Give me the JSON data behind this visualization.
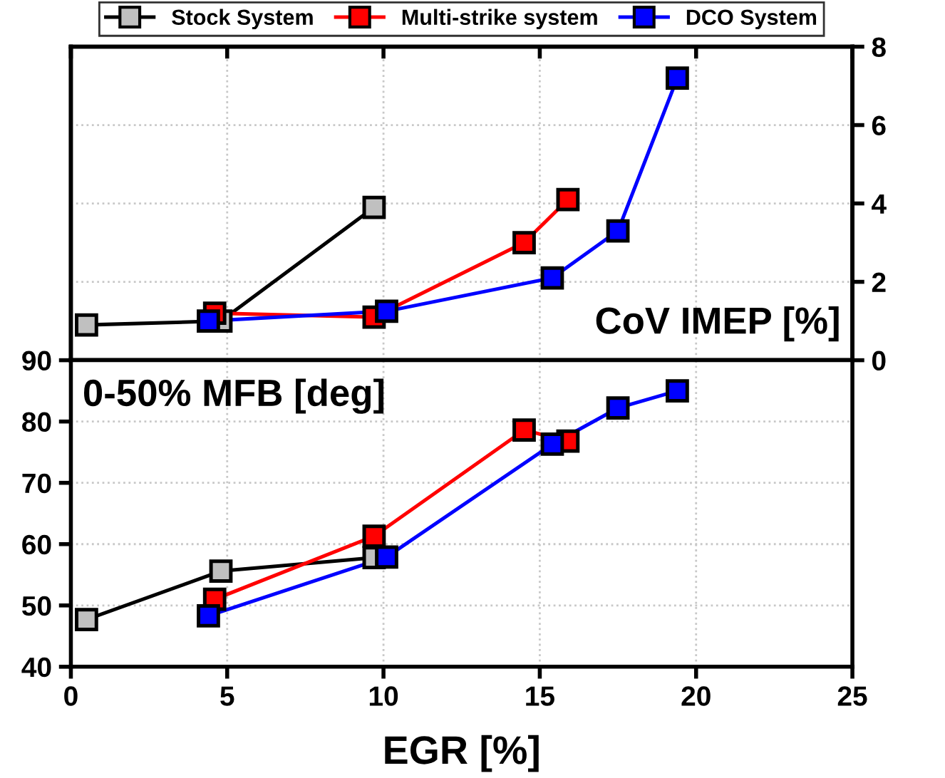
{
  "chart_data": [
    {
      "type": "line",
      "xlim": [
        0,
        25
      ],
      "xticks": [
        0,
        5,
        10,
        15,
        20,
        25
      ],
      "y2lim": [
        0,
        8
      ],
      "y2ticks": [
        0,
        2,
        4,
        6,
        8
      ],
      "tick_labels": "y",
      "grid": true,
      "marker": "square",
      "legend": "top",
      "annotations": [
        "CoV IMEP [%]"
      ],
      "series": [
        {
          "name": "Stock System",
          "color": "#c0c0c0",
          "axis": "y2",
          "x": [
            0.5,
            4.8,
            9.7
          ],
          "values": [
            0.9,
            1.0,
            3.9
          ]
        },
        {
          "name": "Multi-strike system",
          "color": "#ff0000",
          "axis": "y2",
          "x": [
            4.6,
            9.7,
            14.5,
            15.9
          ],
          "values": [
            1.2,
            1.1,
            3.0,
            4.1
          ]
        },
        {
          "name": "DCO System",
          "color": "#0000ff",
          "axis": "y2",
          "x": [
            4.4,
            10.1,
            15.4,
            17.5,
            19.4
          ],
          "values": [
            1.0,
            1.25,
            2.1,
            3.3,
            7.2
          ]
        }
      ]
    },
    {
      "type": "line",
      "xlim": [
        0,
        25
      ],
      "xticks": [
        0,
        5,
        10,
        15,
        20,
        25
      ],
      "ylim": [
        40,
        90
      ],
      "yticks": [
        40,
        50,
        60,
        70,
        80,
        90
      ],
      "xlabel": "EGR [%]",
      "grid": true,
      "marker": "square",
      "annotations": [
        "0-50% MFB [deg]"
      ],
      "series": [
        {
          "color": "#c0c0c0",
          "x": [
            0.5,
            4.8,
            9.7
          ],
          "values": [
            47.7,
            55.6,
            57.8
          ]
        },
        {
          "color": "#ff0000",
          "x": [
            4.6,
            9.7,
            14.5,
            15.9
          ],
          "values": [
            51,
            61.3,
            78.6,
            76.8
          ]
        },
        {
          "color": "#0000ff",
          "x": [
            4.4,
            10.1,
            15.4,
            17.5,
            19.4
          ],
          "values": [
            48.3,
            57.9,
            76.3,
            82.2,
            85
          ]
        }
      ]
    }
  ]
}
